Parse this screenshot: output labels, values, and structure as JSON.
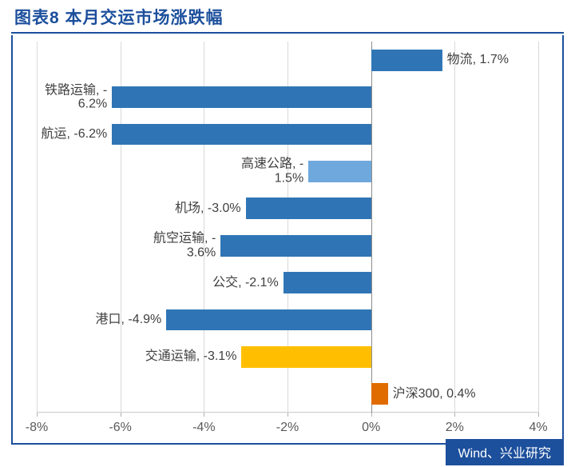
{
  "title": "图表8 本月交运市场涨跌幅",
  "source": "Wind、兴业研究",
  "chart": {
    "type": "horizontal-bar",
    "xmin": -8,
    "xmax": 4,
    "xtick_step": 2,
    "xticks": [
      -8,
      -6,
      -4,
      -2,
      0,
      2,
      4
    ],
    "xtick_labels": [
      "-8%",
      "-6%",
      "-4%",
      "-2%",
      "0%",
      "2%",
      "4%"
    ],
    "grid_color": "#d9d9d9",
    "axis_color": "#c9c9c9",
    "zero_color": "#8c8c8c",
    "text_color": "#595959",
    "background_color": "#ffffff",
    "bar_fill_main": "#2f75b5",
    "bar_fill_highlight": "#6fa8dc",
    "bar_fill_traffic": "#ffbf00",
    "bar_fill_index": "#e06c00",
    "bar_height_ratio": 0.58,
    "bars": [
      {
        "name": "物流",
        "value": 1.7,
        "label": "物流, 1.7%",
        "color": "#2f75b5",
        "label_side": "right"
      },
      {
        "name": "铁路运输",
        "value": -6.2,
        "label": "铁路运输, -\n6.2%",
        "color": "#2f75b5",
        "label_side": "left"
      },
      {
        "name": "航运",
        "value": -6.2,
        "label": "航运, -6.2%",
        "color": "#2f75b5",
        "label_side": "left"
      },
      {
        "name": "高速公路",
        "value": -1.5,
        "label": "高速公路, -\n1.5%",
        "color": "#6fa8dc",
        "label_side": "left"
      },
      {
        "name": "机场",
        "value": -3.0,
        "label": "机场, -3.0%",
        "color": "#2f75b5",
        "label_side": "left"
      },
      {
        "name": "航空运输",
        "value": -3.6,
        "label": "航空运输, -\n3.6%",
        "color": "#2f75b5",
        "label_side": "left"
      },
      {
        "name": "公交",
        "value": -2.1,
        "label": "公交, -2.1%",
        "color": "#2f75b5",
        "label_side": "left"
      },
      {
        "name": "港口",
        "value": -4.9,
        "label": "港口, -4.9%",
        "color": "#2f75b5",
        "label_side": "left"
      },
      {
        "name": "交通运输",
        "value": -3.1,
        "label": "交通运输, -3.1%",
        "color": "#ffbf00",
        "label_side": "left"
      },
      {
        "name": "沪深300",
        "value": 0.4,
        "label": "沪深300, 0.4%",
        "color": "#e06c00",
        "label_side": "right"
      }
    ]
  }
}
